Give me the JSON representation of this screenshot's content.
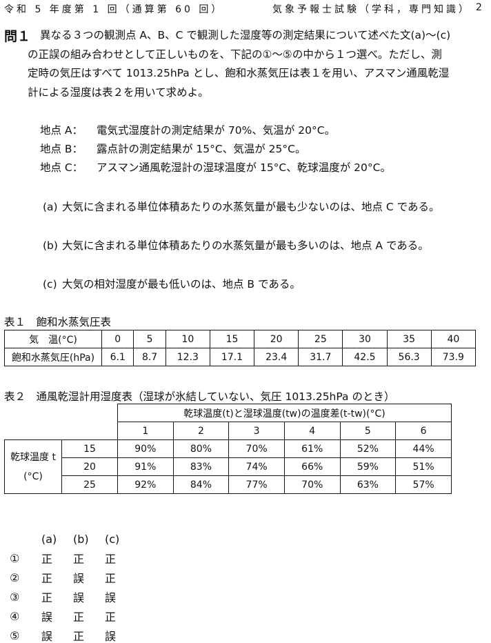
{
  "header": {
    "left": "令和 5 年度第 1 回（通算第 60 回）",
    "right": "気象予報士試験（学科，専門知識）",
    "page_number": "2"
  },
  "question": {
    "label": "問１",
    "lines": [
      "異なる３つの観測点 A、B、C で観測した湿度等の測定結果について述べた文(a)～(c)",
      "の正誤の組み合わせとして正しいものを、下記の①～⑤の中から１つ選べ。ただし、測",
      "定時の気圧はすべて 1013.25hPa とし、飽和水蒸気圧は表１を用い、アスマン通風乾湿",
      "計による湿度は表２を用いて求めよ。"
    ],
    "points": [
      {
        "label": "地点 A：",
        "text": "電気式湿度計の測定結果が 70%、気温が 20°C。"
      },
      {
        "label": "地点 B：",
        "text": "露点計の測定結果が 15°C、気温が 25°C。"
      },
      {
        "label": "地点 C：",
        "text": "アスマン通風乾湿計の湿球温度が 15°C、乾球温度が 20°C。"
      }
    ],
    "statements": [
      {
        "label": "(a)",
        "text": "大気に含まれる単位体積あたりの水蒸気量が最も少ないのは、地点 C である。"
      },
      {
        "label": "(b)",
        "text": "大気に含まれる単位体積あたりの水蒸気量が最も多いのは、地点 A である。"
      },
      {
        "label": "(c)",
        "text": "大気の相対湿度が最も低いのは、地点 B である。"
      }
    ]
  },
  "table1": {
    "title": "表１　飽和水蒸気圧表",
    "row_headers": [
      "気　温(°C)",
      "飽和水蒸気圧(hPa)"
    ],
    "temps": [
      "0",
      "5",
      "10",
      "15",
      "20",
      "25",
      "30",
      "35",
      "40"
    ],
    "pressures": [
      "6.1",
      "8.7",
      "12.3",
      "17.1",
      "23.4",
      "31.7",
      "42.5",
      "56.3",
      "73.9"
    ]
  },
  "table2": {
    "title": "表２　通風乾湿計用湿度表（湿球が氷結していない、気圧 1013.25hPa のとき）",
    "col_group_header": "乾球温度(t)と湿球温度(tw)の温度差(t-tw)(°C)",
    "diffs": [
      "1",
      "2",
      "3",
      "4",
      "5",
      "6"
    ],
    "row_group_header": [
      "乾球温度 t",
      "(°C)"
    ],
    "rows": [
      {
        "t": "15",
        "values": [
          "90%",
          "80%",
          "70%",
          "61%",
          "52%",
          "44%"
        ]
      },
      {
        "t": "20",
        "values": [
          "91%",
          "83%",
          "74%",
          "66%",
          "59%",
          "51%"
        ]
      },
      {
        "t": "25",
        "values": [
          "92%",
          "84%",
          "77%",
          "70%",
          "63%",
          "57%"
        ]
      }
    ]
  },
  "answers": {
    "headers": [
      "(a)",
      "(b)",
      "(c)"
    ],
    "options": [
      {
        "num": "①",
        "a": "正",
        "b": "正",
        "c": "正"
      },
      {
        "num": "②",
        "a": "正",
        "b": "誤",
        "c": "正"
      },
      {
        "num": "③",
        "a": "正",
        "b": "誤",
        "c": "誤"
      },
      {
        "num": "④",
        "a": "誤",
        "b": "正",
        "c": "正"
      },
      {
        "num": "⑤",
        "a": "誤",
        "b": "正",
        "c": "誤"
      }
    ]
  }
}
